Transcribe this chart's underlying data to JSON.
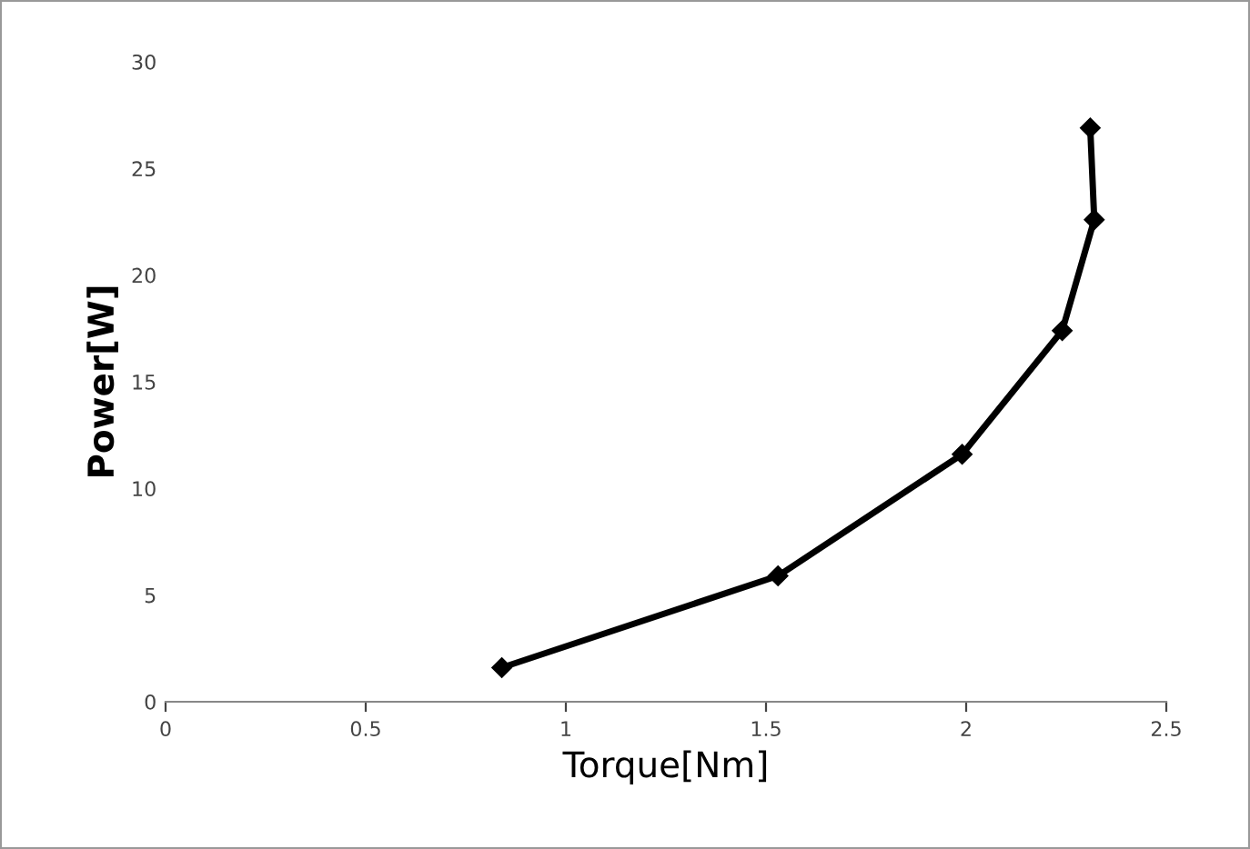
{
  "chart_data": {
    "type": "line",
    "xlabel": "Torque[Nm]",
    "ylabel": "Power[W]",
    "x": [
      0.84,
      1.53,
      1.99,
      2.24,
      2.32,
      2.31
    ],
    "series": [
      {
        "color": "#000000",
        "values": [
          1.6,
          5.9,
          11.6,
          17.4,
          22.6,
          26.9
        ]
      }
    ],
    "xlim": [
      0,
      2.5
    ],
    "xticks": [
      0,
      0.5,
      1,
      1.5,
      2,
      2.5
    ],
    "ylim": [
      0,
      30
    ],
    "yticks": [
      0,
      5,
      10,
      15,
      20,
      25,
      30
    ],
    "grid": false,
    "legend": false,
    "marker": "diamond",
    "line_style": "solid"
  }
}
